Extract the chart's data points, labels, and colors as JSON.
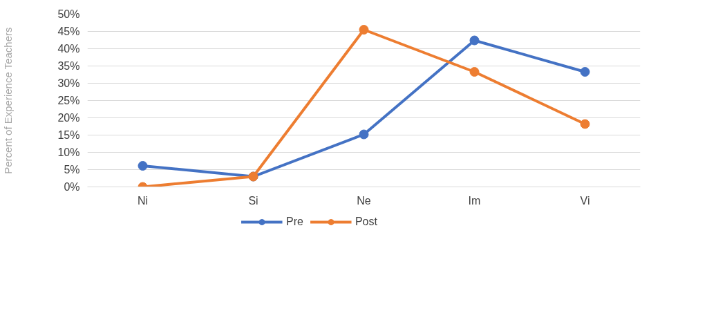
{
  "chart_data": {
    "type": "line",
    "ylabel": "Percent of Experience Teachers",
    "categories": [
      "Ni",
      "Si",
      "Ne",
      "Im",
      "Vi"
    ],
    "series": [
      {
        "name": "Pre",
        "color": "#4472c4",
        "values": [
          6.1,
          3.0,
          15.2,
          42.4,
          33.3
        ]
      },
      {
        "name": "Post",
        "color": "#ed7d31",
        "values": [
          0,
          3.0,
          45.5,
          33.3,
          18.2
        ]
      }
    ],
    "ylim": [
      0,
      50
    ],
    "yticks": [
      {
        "value": 0,
        "label": "0%"
      },
      {
        "value": 5,
        "label": "5%"
      },
      {
        "value": 10,
        "label": "10%"
      },
      {
        "value": 15,
        "label": "15%"
      },
      {
        "value": 20,
        "label": "20%"
      },
      {
        "value": 25,
        "label": "25%"
      },
      {
        "value": 30,
        "label": "30%"
      },
      {
        "value": 35,
        "label": "35%"
      },
      {
        "value": 40,
        "label": "40%"
      },
      {
        "value": 45,
        "label": "45%"
      },
      {
        "value": 50,
        "label": "50%"
      }
    ],
    "grid": "y",
    "legend": "bottom",
    "marker": "circle",
    "line_style": "solid"
  }
}
